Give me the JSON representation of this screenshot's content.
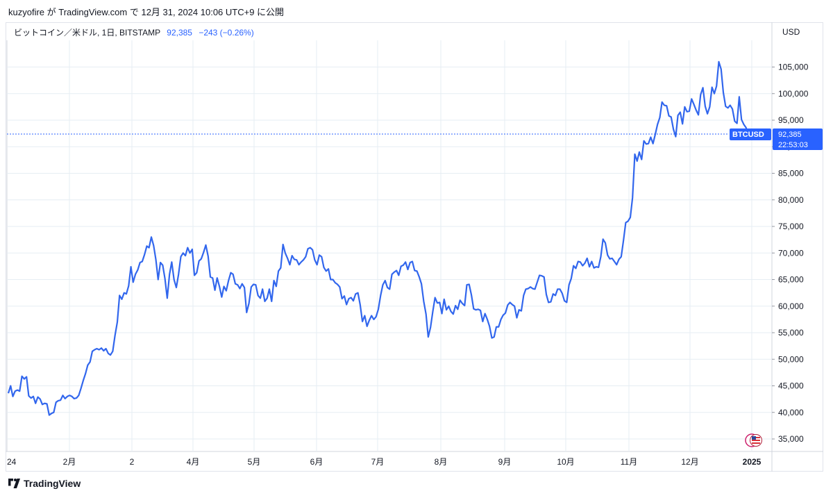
{
  "header": {
    "text": "kuzyofire が TradingView.com で 12月 31, 2024 10:06 UTC+9 に公開"
  },
  "legend": {
    "symbol": "ビットコイン／米ドル, 1日, BITSTAMP",
    "price": "92,385",
    "change": "−243 (−0.26%)"
  },
  "currency": "USD",
  "ticker_tag": {
    "symbol": "BTCUSD",
    "price": "92,385",
    "countdown": "22:53:03"
  },
  "brand": {
    "name": "TradingView"
  },
  "colors": {
    "line": "#3166ed",
    "accent": "#2962ff",
    "grid": "#e6edf3"
  },
  "chart_data": {
    "type": "line",
    "title": "",
    "xlabel": "",
    "ylabel": "",
    "ylim": [
      32000,
      111000
    ],
    "yticks": [
      "35,000",
      "40,000",
      "45,000",
      "50,000",
      "55,000",
      "60,000",
      "65,000",
      "70,000",
      "75,000",
      "80,000",
      "85,000",
      "90,000",
      "95,000",
      "100,000",
      "105,000"
    ],
    "xticks": [
      "24",
      "2月",
      "2",
      "4月",
      "5月",
      "6月",
      "7月",
      "8月",
      "9月",
      "10月",
      "11月",
      "12月",
      "2025"
    ],
    "last_price": 92385,
    "series": [
      {
        "values": [
          43600,
          45000,
          43000,
          44000,
          44200,
          44000,
          46800,
          46300,
          46700,
          43100,
          42700,
          43000,
          41700,
          42900,
          42500,
          41500,
          41700,
          41600,
          39500,
          39800,
          40000,
          41900,
          42200,
          42300,
          43200,
          42600,
          43000,
          43200,
          43000,
          42600,
          42700,
          43200,
          44500,
          46000,
          47300,
          48900,
          49500,
          51500,
          51800,
          52000,
          51800,
          52100,
          51600,
          52000,
          51100,
          50800,
          51500,
          54500,
          57000,
          62000,
          61300,
          62500,
          62300,
          63800,
          67400,
          64500,
          66000,
          66800,
          68200,
          68400,
          69700,
          71300,
          71000,
          73000,
          71400,
          68800,
          65000,
          68200,
          67700,
          65200,
          61500,
          66000,
          68300,
          65000,
          63500,
          66000,
          69300,
          70000,
          69500,
          71000,
          70000,
          70700,
          65800,
          66300,
          68500,
          68900,
          70100,
          71500,
          69400,
          65500,
          65300,
          63000,
          65300,
          63700,
          61700,
          63700,
          62900,
          64800,
          66300,
          66000,
          64200,
          64000,
          63300,
          64200,
          63500,
          58800,
          60500,
          63600,
          64100,
          64000,
          62000,
          61500,
          63200,
          60900,
          61500,
          63200,
          60900,
          64800,
          63700,
          66600,
          67200,
          71600,
          70000,
          69000,
          67800,
          69500,
          68800,
          68700,
          67800,
          68300,
          68700,
          69300,
          70800,
          71000,
          70600,
          68700,
          67800,
          69600,
          69300,
          67300,
          66600,
          67000,
          65000,
          65000,
          64400,
          64100,
          63600,
          61400,
          61900,
          60300,
          61400,
          61600,
          61000,
          62300,
          62500,
          60300,
          57100,
          58200,
          56200,
          57300,
          58200,
          57500,
          58000,
          59400,
          62000,
          64000,
          64800,
          63500,
          63200,
          66000,
          66400,
          66700,
          65800,
          67500,
          67700,
          68300,
          66900,
          68200,
          68400,
          66700,
          66600,
          65500,
          64200,
          60900,
          58500,
          54200,
          56000,
          59000,
          61600,
          60600,
          60700,
          58600,
          61300,
          59300,
          60000,
          59000,
          58500,
          60100,
          59400,
          61100,
          60500,
          60100,
          64000,
          64100,
          62100,
          59500,
          59300,
          59400,
          59200,
          57100,
          58600,
          57500,
          56200,
          54000,
          54200,
          56100,
          56100,
          57500,
          58300,
          58700,
          60200,
          60700,
          60300,
          60000,
          57800,
          59300,
          59100,
          62000,
          63200,
          63300,
          63600,
          63300,
          63200,
          64500,
          65800,
          65700,
          65500,
          62200,
          60700,
          60800,
          62300,
          62000,
          63200,
          63200,
          62400,
          61000,
          60700,
          64000,
          65200,
          67600,
          67100,
          68400,
          68300,
          67600,
          68100,
          69000,
          67400,
          68400,
          67200,
          67400,
          67300,
          69300,
          72600,
          71900,
          69600,
          68900,
          69000,
          68400,
          67800,
          68800,
          69300,
          72400,
          75700,
          76000,
          76700,
          80400,
          88600,
          87300,
          89000,
          87600,
          91100,
          90500,
          90600,
          91800,
          90600,
          92300,
          94200,
          95500,
          98400,
          97800,
          97700,
          95800,
          95600,
          93300,
          91900,
          95900,
          96500,
          94300,
          97500,
          96600,
          96700,
          99000,
          98000,
          96900,
          96000,
          99800,
          101100,
          97600,
          96200,
          97500,
          101200,
          100000,
          101400,
          106000,
          104600,
          100200,
          97600,
          97300,
          97800,
          97100,
          94800,
          94400,
          99400,
          95100,
          94200,
          93600,
          92385
        ]
      }
    ]
  }
}
